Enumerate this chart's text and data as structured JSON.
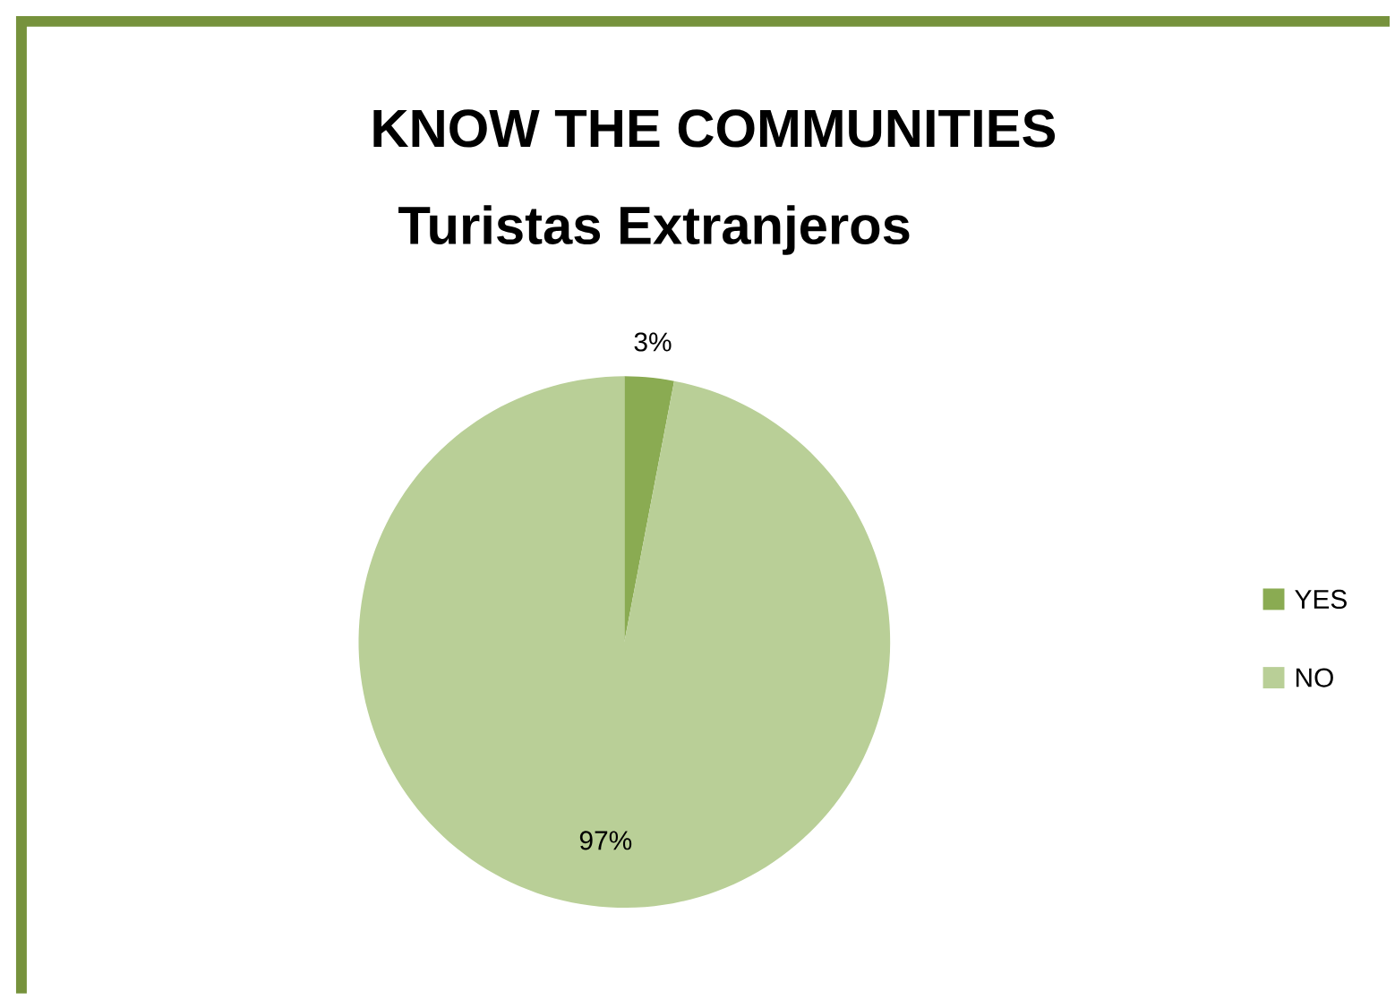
{
  "chart_data": {
    "type": "pie",
    "title": "KNOW THE COMMUNITIES",
    "subtitle": "Turistas Extranjeros",
    "categories": [
      "YES",
      "NO"
    ],
    "values": [
      3,
      97
    ],
    "value_labels": [
      "3%",
      "97%"
    ],
    "colors": [
      "#8aab52",
      "#b9cf97"
    ],
    "legend": "right"
  }
}
